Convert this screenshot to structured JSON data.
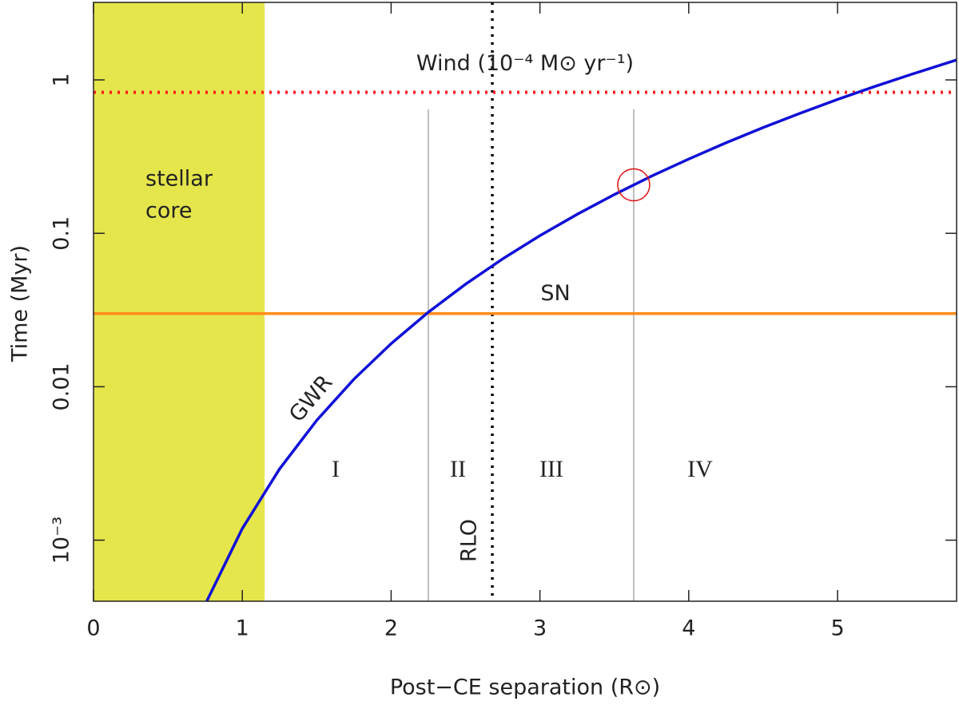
{
  "chart_data": {
    "type": "line",
    "x_label": "Post−CE separation (R⊙)",
    "y_label": "Time   (Myr)",
    "xlim": [
      0,
      5.8
    ],
    "ylim": [
      0.0004,
      3.2
    ],
    "log_y": true,
    "xticks": [
      0,
      1,
      2,
      3,
      4,
      5
    ],
    "yticks": [
      {
        "value": 0.001,
        "label": "10⁻³"
      },
      0.01,
      0.1,
      1
    ],
    "series": [
      {
        "name": "GWR",
        "color": "#1010d8",
        "x": [
          0.76,
          1,
          1.25,
          1.5,
          1.75,
          2,
          2.25,
          2.5,
          2.75,
          3,
          3.25,
          3.5,
          3.75,
          4,
          4.25,
          4.5,
          4.75,
          5,
          5.25,
          5.5,
          5.8
        ],
        "values": [
          0.000398,
          0.00119,
          0.00291,
          0.00604,
          0.0112,
          0.0191,
          0.0306,
          0.0466,
          0.0682,
          0.0966,
          0.133,
          0.179,
          0.236,
          0.305,
          0.389,
          0.489,
          0.607,
          0.746,
          0.906,
          1.09,
          1.35
        ]
      }
    ],
    "shade": {
      "xrange": [
        0,
        1.15
      ],
      "color": "#e5e54c",
      "label": [
        "stellar",
        "core"
      ]
    },
    "hlines": [
      {
        "name": "Wind  (10⁻⁴ M⊙ yr⁻¹)",
        "value": 0.83,
        "color": "#ff1a1a",
        "style": "dotted"
      },
      {
        "name": "SN",
        "value": 0.03,
        "color": "#ff8c1a",
        "style": "solid"
      }
    ],
    "vlines": [
      {
        "value": 2.25,
        "color": "#aaaaaa",
        "style": "solid"
      },
      {
        "value": 3.63,
        "color": "#aaaaaa",
        "style": "solid"
      },
      {
        "name": "RLO",
        "value": 2.68,
        "color": "#000000",
        "style": "dotted"
      }
    ],
    "marker": {
      "x": 3.63,
      "y": 0.207,
      "color": "#e01010"
    },
    "regions": [
      "I",
      "II",
      "III",
      "IV"
    ]
  }
}
